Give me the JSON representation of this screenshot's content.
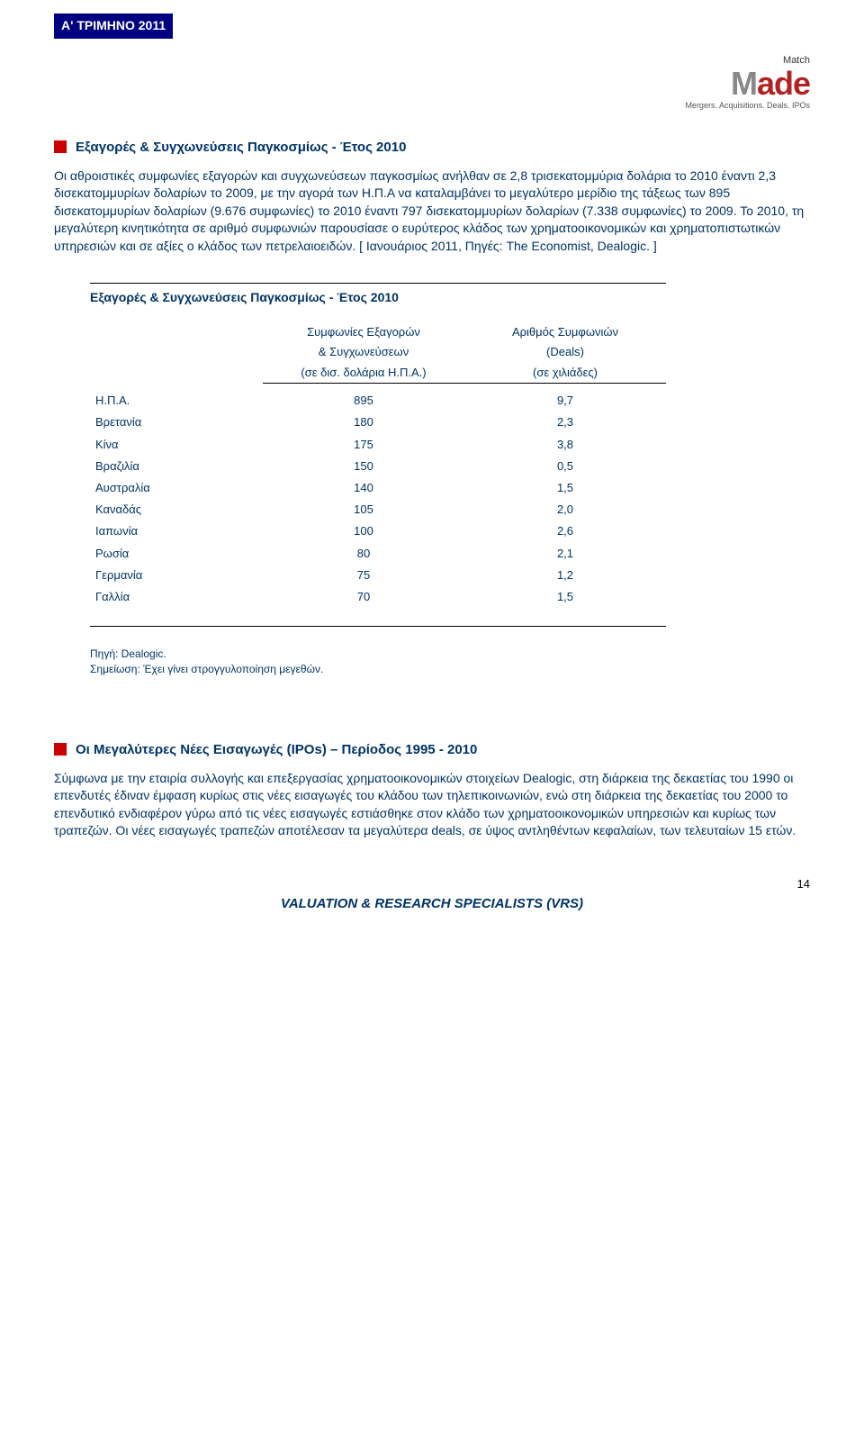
{
  "header_badge": "Α' ΤΡΙΜΗΝΟ 2011",
  "logo": {
    "match": "Match",
    "made": "Made",
    "tagline": "Mergers. Acquisitions. Deals. IPOs"
  },
  "section1": {
    "title": "Εξαγορές & Συγχωνεύσεις Παγκοσμίως - Έτος 2010",
    "body": "Οι αθροιστικές συμφωνίες εξαγορών και συγχωνεύσεων παγκοσμίως ανήλθαν σε 2,8 τρισεκατομμύρια δολάρια το 2010 έναντι 2,3 δισεκατομμυρίων δολαρίων το 2009, με την αγορά των Η.Π.Α να καταλαμβάνει το μεγαλύτερο μερίδιο της τάξεως των 895 δισεκατομμυρίων δολαρίων (9.676 συμφωνίες) το 2010 έναντι 797 δισεκατομμυρίων δολαρίων (7.338 συμφωνίες) το 2009. Το 2010, τη μεγαλύτερη κινητικότητα σε αριθμό συμφωνιών παρουσίασε ο ευρύτερος κλάδος των χρηματοοικονομικών και χρηματοπιστωτικών υπηρεσιών και σε αξίες ο κλάδος των πετρελαιοειδών. [ Ιανουάριος 2011, Πηγές: The Economist, Dealogic. ]"
  },
  "table": {
    "title": "Εξαγορές & Συγχωνεύσεις Παγκοσμίως - Έτος 2010",
    "col1_h1": "Συμφωνίες Εξαγορών",
    "col1_h2": "& Συγχωνεύσεων",
    "col1_h3": "(σε δισ. δολάρια Η.Π.Α.)",
    "col2_h1": "Αριθμός Συμφωνιών",
    "col2_h2": "(Deals)",
    "col2_h3": "(σε χιλιάδες)",
    "rows": [
      {
        "country": "Η.Π.Α.",
        "a": "895",
        "b": "9,7"
      },
      {
        "country": "Βρετανία",
        "a": "180",
        "b": "2,3"
      },
      {
        "country": "Κίνα",
        "a": "175",
        "b": "3,8"
      },
      {
        "country": "Βραζιλία",
        "a": "150",
        "b": "0,5"
      },
      {
        "country": "Αυστραλία",
        "a": "140",
        "b": "1,5"
      },
      {
        "country": "Καναδάς",
        "a": "105",
        "b": "2,0"
      },
      {
        "country": "Ιαπωνία",
        "a": "100",
        "b": "2,6"
      },
      {
        "country": "Ρωσία",
        "a": "80",
        "b": "2,1"
      },
      {
        "country": "Γερμανία",
        "a": "75",
        "b": "1,2"
      },
      {
        "country": "Γαλλία",
        "a": "70",
        "b": "1,5"
      }
    ],
    "source": "Πηγή: Dealogic.",
    "note": "Σημείωση: Έχει γίνει στρογγυλοποίηση μεγεθών."
  },
  "section2": {
    "title": "Οι Μεγαλύτερες Νέες Εισαγωγές (IPOs) – Περίοδος 1995 - 2010",
    "body": "Σύμφωνα με την εταιρία συλλογής και επεξεργασίας χρηματοοικονομικών στοιχείων Dealogic, στη διάρκεια της δεκαετίας του 1990 οι επενδυτές έδιναν έμφαση κυρίως στις νέες εισαγωγές του κλάδου των τηλεπικοινωνιών, ενώ στη διάρκεια της δεκαετίας του 2000 το επενδυτικό ενδιαφέρον γύρω από τις νέες εισαγωγές εστιάσθηκε στον κλάδο των χρηματοοικονομικών υπηρεσιών και κυρίως των τραπεζών. Οι νέες εισαγωγές τραπεζών αποτέλεσαν τα μεγαλύτερα deals, σε ύψος αντληθέντων κεφαλαίων, των τελευταίων 15 ετών."
  },
  "footer": {
    "title": "VALUATION & RESEARCH SPECIALISTS (VRS)",
    "page": "14"
  }
}
